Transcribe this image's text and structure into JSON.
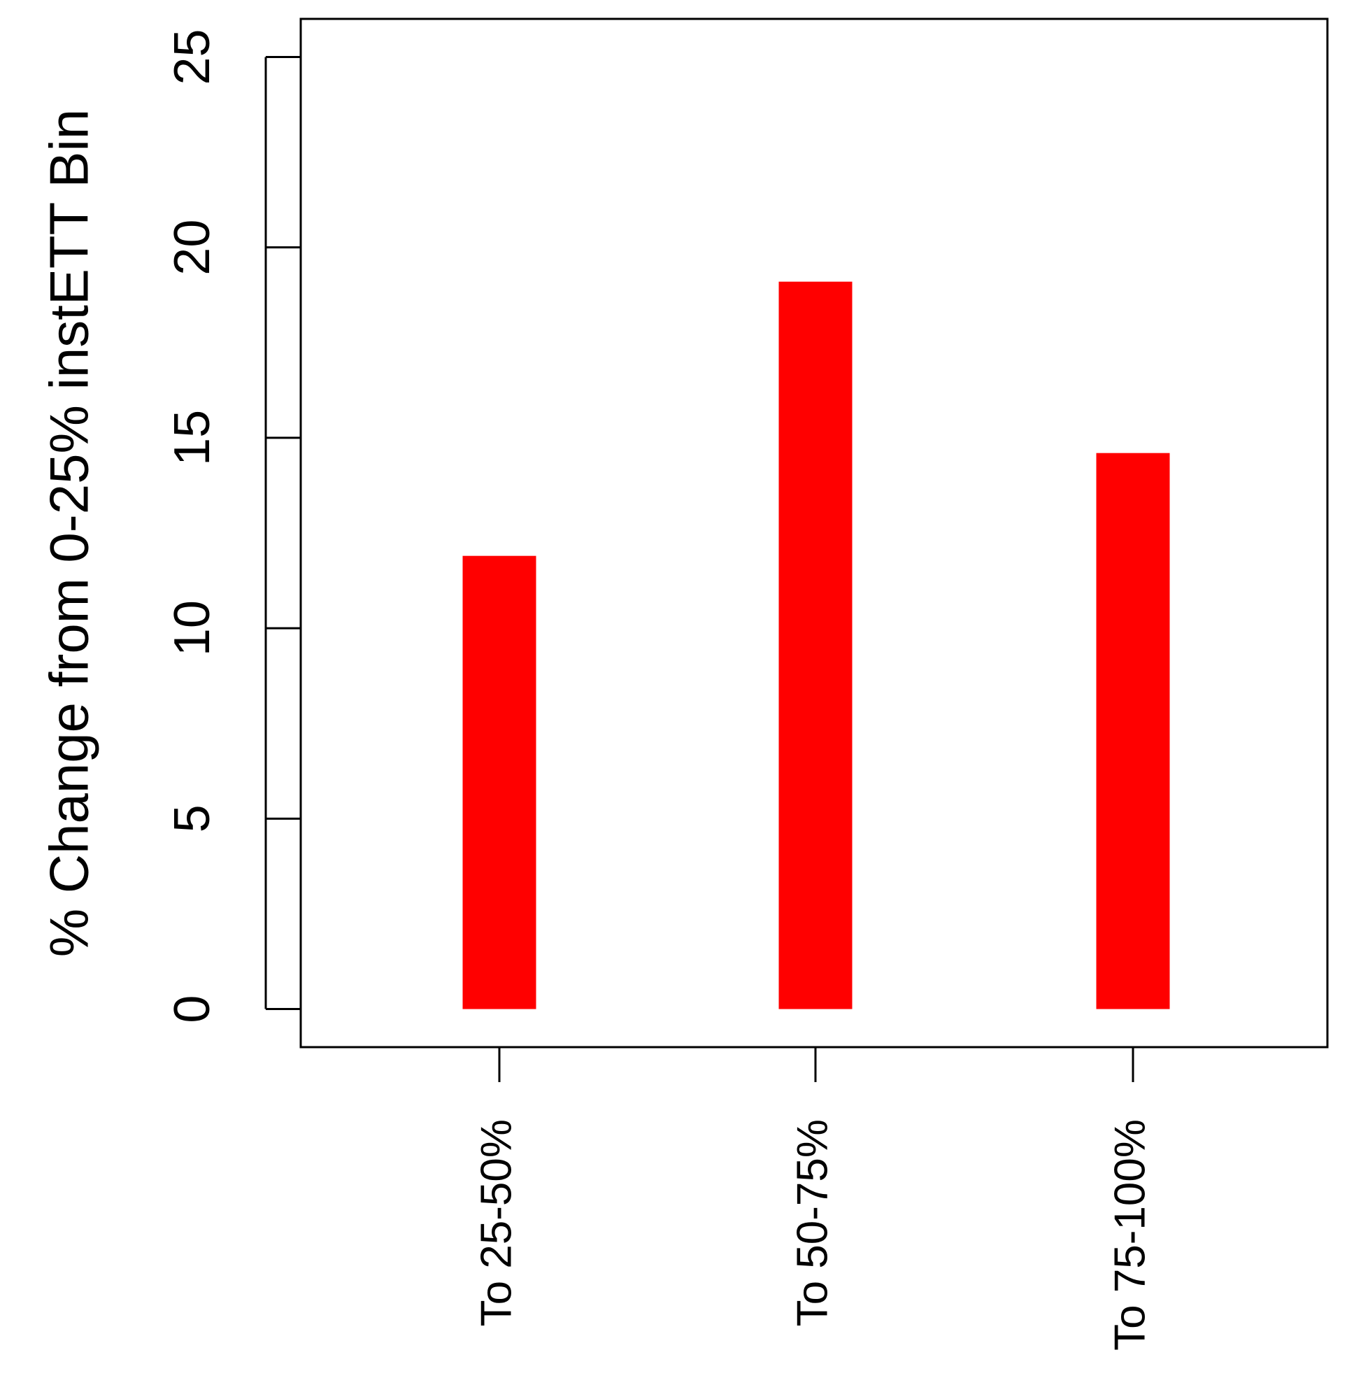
{
  "chart_data": {
    "type": "bar",
    "title": "",
    "xlabel": "",
    "ylabel": "% Change from 0-25% instETT Bin",
    "categories": [
      "To 25-50%",
      "To 50-75%",
      "To 75-100%"
    ],
    "values": [
      11.9,
      19.1,
      14.6
    ],
    "ylim": [
      -1,
      26
    ],
    "yticks": [
      0,
      5,
      10,
      15,
      20,
      25
    ],
    "bar_color": "#ff0000",
    "grid": false,
    "legend": "none"
  }
}
